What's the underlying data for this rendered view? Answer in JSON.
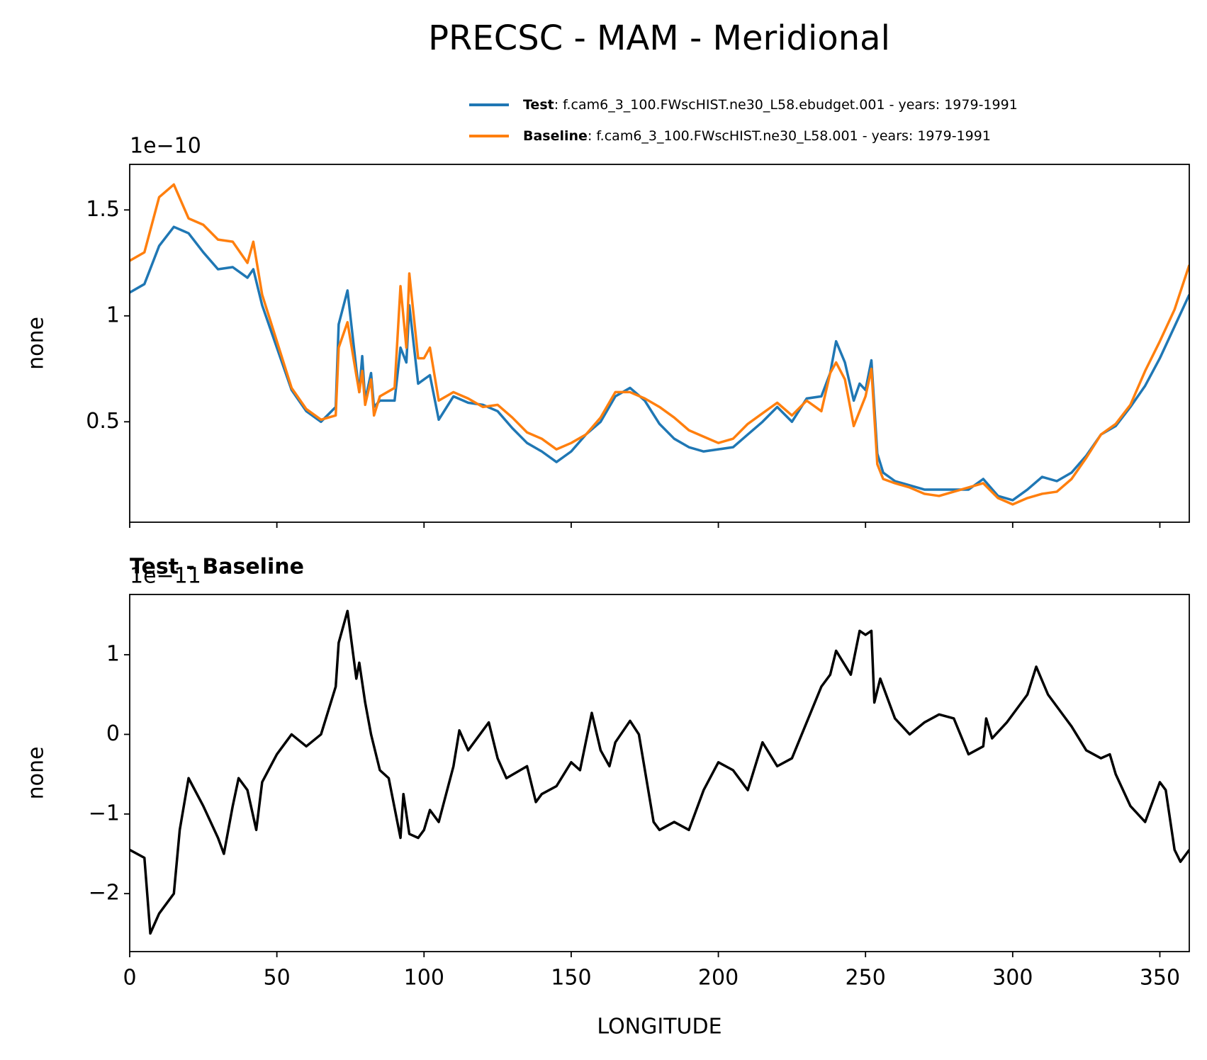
{
  "chart_data": [
    {
      "type": "line",
      "title": "PRECSC - MAM - Meridional",
      "ylabel": "none",
      "y_offset_label": "1e−10",
      "xlim": [
        0,
        360
      ],
      "ylim": [
        0.026,
        1.715
      ],
      "yticks": [
        0.5,
        1.0,
        1.5
      ],
      "x": [
        0,
        5,
        10,
        15,
        20,
        25,
        30,
        35,
        40,
        42,
        45,
        50,
        55,
        60,
        65,
        70,
        71,
        74,
        77,
        78,
        79,
        80,
        82,
        83,
        85,
        90,
        92,
        94,
        95,
        98,
        100,
        102,
        105,
        110,
        115,
        120,
        125,
        130,
        135,
        140,
        145,
        150,
        155,
        160,
        165,
        170,
        175,
        180,
        185,
        190,
        195,
        200,
        205,
        210,
        215,
        220,
        225,
        230,
        235,
        238,
        240,
        243,
        246,
        248,
        250,
        252,
        254,
        256,
        260,
        265,
        270,
        275,
        280,
        285,
        290,
        295,
        300,
        305,
        310,
        315,
        320,
        325,
        330,
        335,
        340,
        345,
        350,
        355,
        360
      ],
      "series": [
        {
          "name": "Test",
          "description": ": f.cam6_3_100.FWscHIST.ne30_L58.ebudget.001 - years: 1979-1991",
          "color": "#1f77b4",
          "values": [
            1.11,
            1.15,
            1.33,
            1.42,
            1.39,
            1.3,
            1.22,
            1.23,
            1.18,
            1.22,
            1.05,
            0.85,
            0.65,
            0.55,
            0.5,
            0.57,
            0.96,
            1.12,
            0.75,
            0.64,
            0.81,
            0.6,
            0.73,
            0.57,
            0.6,
            0.6,
            0.85,
            0.78,
            1.05,
            0.68,
            0.7,
            0.72,
            0.51,
            0.62,
            0.59,
            0.58,
            0.55,
            0.47,
            0.4,
            0.36,
            0.31,
            0.36,
            0.44,
            0.5,
            0.62,
            0.66,
            0.6,
            0.49,
            0.42,
            0.38,
            0.36,
            0.37,
            0.38,
            0.44,
            0.5,
            0.57,
            0.5,
            0.61,
            0.62,
            0.73,
            0.88,
            0.78,
            0.6,
            0.68,
            0.65,
            0.79,
            0.35,
            0.26,
            0.22,
            0.2,
            0.18,
            0.18,
            0.18,
            0.18,
            0.23,
            0.15,
            0.13,
            0.18,
            0.24,
            0.22,
            0.26,
            0.34,
            0.44,
            0.48,
            0.57,
            0.67,
            0.8,
            0.95,
            1.1
          ]
        },
        {
          "name": "Baseline",
          "description": ": f.cam6_3_100.FWscHIST.ne30_L58.001 - years: 1979-1991",
          "color": "#ff7f0e",
          "values": [
            1.26,
            1.3,
            1.56,
            1.62,
            1.46,
            1.43,
            1.36,
            1.35,
            1.25,
            1.35,
            1.1,
            0.88,
            0.66,
            0.56,
            0.51,
            0.53,
            0.85,
            0.97,
            0.72,
            0.64,
            0.74,
            0.58,
            0.7,
            0.53,
            0.62,
            0.66,
            1.14,
            0.85,
            1.2,
            0.8,
            0.8,
            0.85,
            0.6,
            0.64,
            0.61,
            0.57,
            0.58,
            0.52,
            0.45,
            0.42,
            0.37,
            0.4,
            0.44,
            0.52,
            0.64,
            0.64,
            0.61,
            0.57,
            0.52,
            0.46,
            0.43,
            0.4,
            0.42,
            0.49,
            0.54,
            0.59,
            0.53,
            0.6,
            0.55,
            0.73,
            0.78,
            0.7,
            0.48,
            0.55,
            0.62,
            0.75,
            0.3,
            0.23,
            0.21,
            0.19,
            0.16,
            0.15,
            0.17,
            0.19,
            0.21,
            0.14,
            0.11,
            0.14,
            0.16,
            0.17,
            0.23,
            0.33,
            0.44,
            0.49,
            0.58,
            0.74,
            0.88,
            1.03,
            1.24
          ]
        }
      ]
    },
    {
      "type": "line",
      "title": "Test - Baseline",
      "xlabel": "LONGITUDE",
      "ylabel": "none",
      "y_offset_label": "1e−11",
      "xlim": [
        0,
        360
      ],
      "ylim": [
        -2.728,
        1.757
      ],
      "xticks": [
        0,
        50,
        100,
        150,
        200,
        250,
        300,
        350
      ],
      "yticks": [
        {
          "value": -2,
          "label": "−2"
        },
        {
          "value": -1,
          "label": "−1"
        },
        0,
        1
      ],
      "x": [
        0,
        5,
        7,
        10,
        15,
        17,
        20,
        25,
        30,
        32,
        35,
        37,
        40,
        43,
        45,
        50,
        55,
        60,
        65,
        70,
        71,
        74,
        77,
        78,
        80,
        82,
        85,
        88,
        92,
        93,
        95,
        98,
        100,
        102,
        105,
        110,
        112,
        115,
        120,
        122,
        125,
        128,
        135,
        138,
        140,
        145,
        150,
        153,
        157,
        160,
        163,
        165,
        170,
        173,
        178,
        180,
        185,
        190,
        195,
        200,
        205,
        210,
        215,
        220,
        225,
        230,
        235,
        238,
        240,
        245,
        248,
        250,
        252,
        253,
        255,
        260,
        265,
        270,
        275,
        280,
        285,
        290,
        291,
        293,
        298,
        302,
        305,
        308,
        312,
        315,
        320,
        325,
        330,
        333,
        335,
        340,
        345,
        350,
        352,
        355,
        357,
        360
      ],
      "series": [
        {
          "name": "Test - Baseline",
          "color": "#000000",
          "values": [
            -1.45,
            -1.55,
            -2.5,
            -2.25,
            -2.0,
            -1.2,
            -0.55,
            -0.9,
            -1.3,
            -1.5,
            -0.9,
            -0.55,
            -0.7,
            -1.2,
            -0.6,
            -0.25,
            0.0,
            -0.15,
            0.0,
            0.6,
            1.15,
            1.55,
            0.7,
            0.9,
            0.4,
            0.0,
            -0.45,
            -0.55,
            -1.3,
            -0.75,
            -1.25,
            -1.3,
            -1.2,
            -0.95,
            -1.1,
            -0.4,
            0.05,
            -0.2,
            0.05,
            0.15,
            -0.3,
            -0.55,
            -0.4,
            -0.85,
            -0.75,
            -0.65,
            -0.35,
            -0.45,
            0.27,
            -0.2,
            -0.4,
            -0.1,
            0.17,
            0.0,
            -1.1,
            -1.2,
            -1.1,
            -1.2,
            -0.7,
            -0.35,
            -0.45,
            -0.7,
            -0.1,
            -0.4,
            -0.3,
            0.15,
            0.6,
            0.75,
            1.05,
            0.75,
            1.3,
            1.25,
            1.3,
            0.4,
            0.7,
            0.2,
            0.0,
            0.15,
            0.25,
            0.2,
            -0.25,
            -0.15,
            0.2,
            -0.05,
            0.15,
            0.35,
            0.5,
            0.85,
            0.5,
            0.35,
            0.1,
            -0.2,
            -0.3,
            -0.25,
            -0.5,
            -0.9,
            -1.1,
            -0.6,
            -0.7,
            -1.45,
            -1.6,
            -1.45
          ]
        }
      ]
    }
  ]
}
